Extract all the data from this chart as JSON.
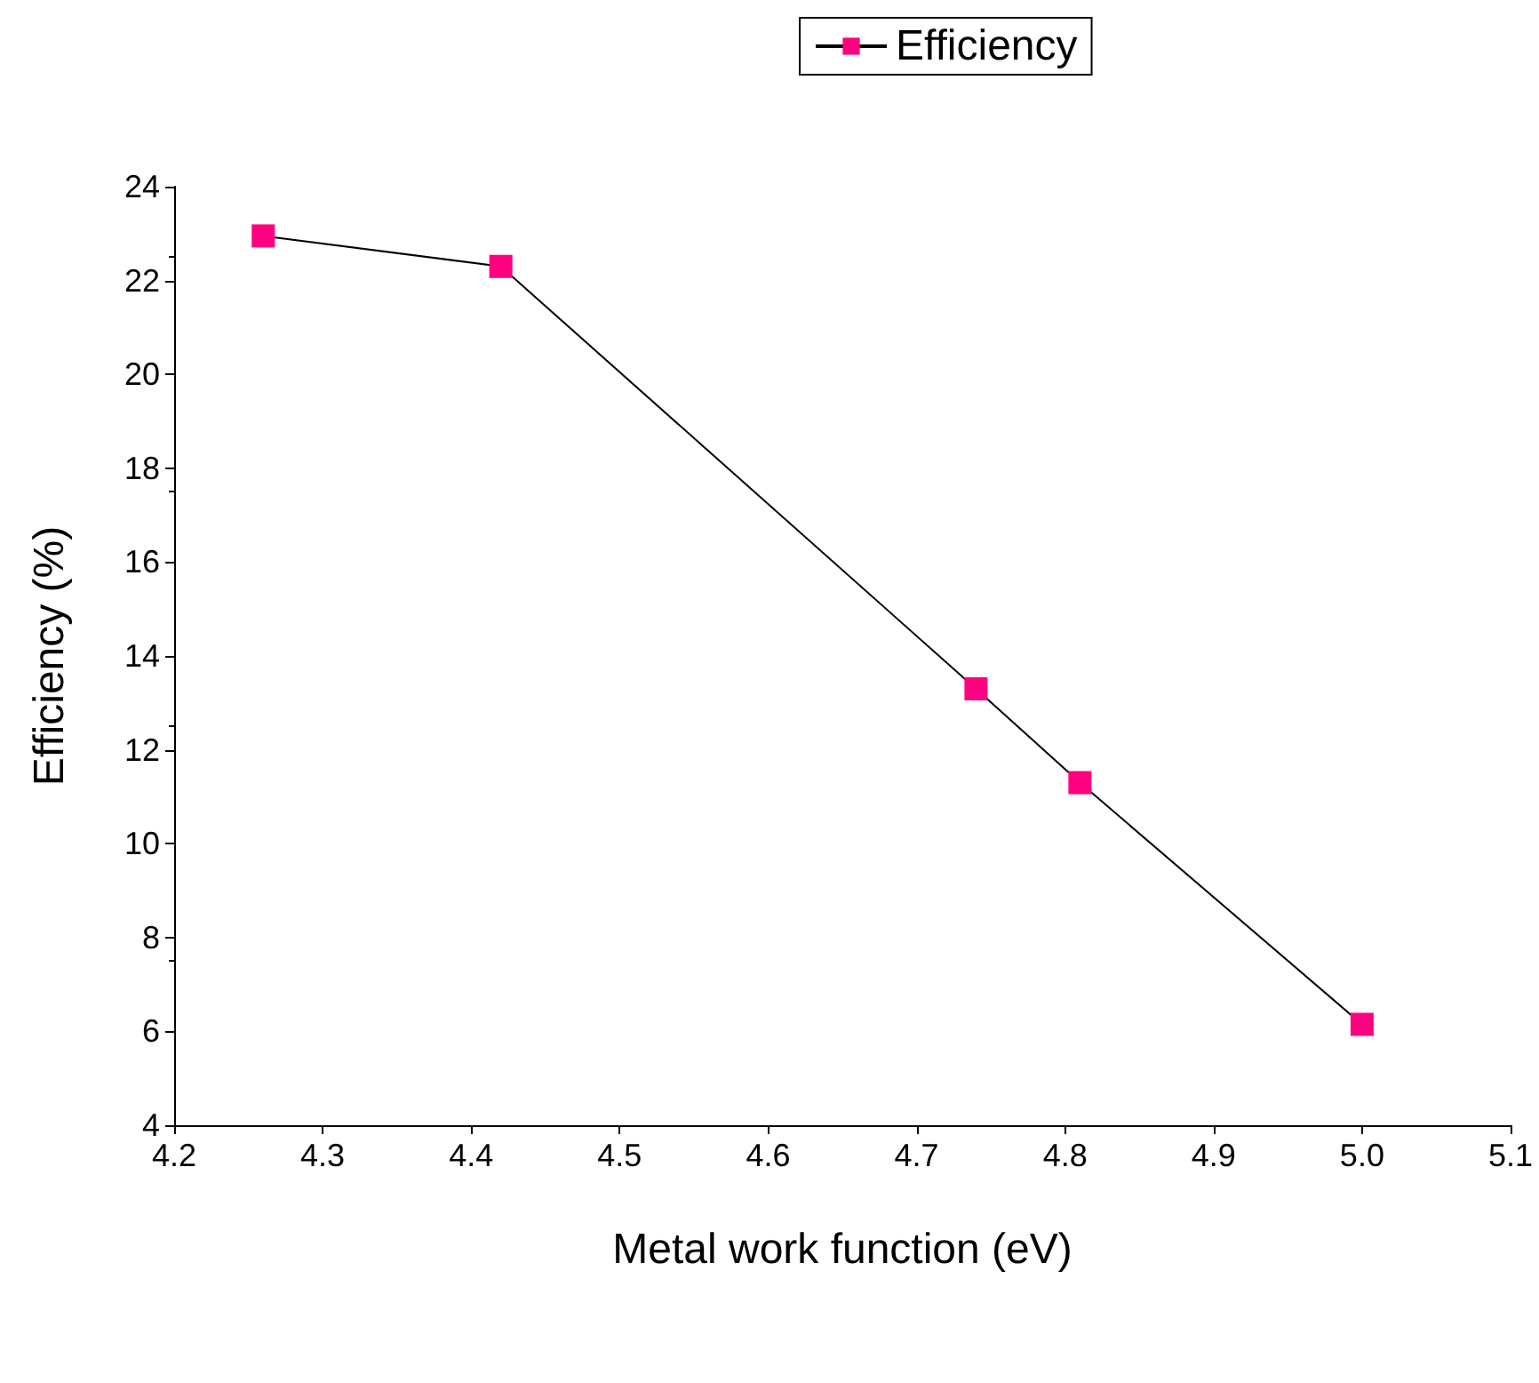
{
  "chart_data": {
    "type": "line",
    "xlabel": "Metal work function (eV)",
    "ylabel": "Efficiency (%)",
    "x": [
      4.26,
      4.42,
      4.74,
      4.81,
      5.0
    ],
    "series": [
      {
        "name": "Efficiency",
        "color": "#ff0080",
        "values": [
          22.95,
          22.3,
          13.3,
          11.3,
          6.15
        ]
      }
    ],
    "xlim": [
      4.2,
      5.1
    ],
    "xticks": [
      {
        "value": 4.2,
        "label": "4.2"
      },
      {
        "value": 4.3,
        "label": "4.3"
      },
      {
        "value": 4.4,
        "label": "4.4"
      },
      {
        "value": 4.5,
        "label": "4.5"
      },
      {
        "value": 4.6,
        "label": "4.6"
      },
      {
        "value": 4.7,
        "label": "4.7"
      },
      {
        "value": 4.8,
        "label": "4.8"
      },
      {
        "value": 4.9,
        "label": "4.9"
      },
      {
        "value": 5.0,
        "label": "5.0"
      },
      {
        "value": 5.1,
        "label": "5.1"
      }
    ],
    "ylim": [
      4,
      24
    ],
    "yticks": [
      4,
      6,
      8,
      10,
      12,
      14,
      16,
      18,
      20,
      22,
      24
    ],
    "grid": false,
    "legend": "top",
    "marker": "square",
    "line_style": "solid"
  }
}
